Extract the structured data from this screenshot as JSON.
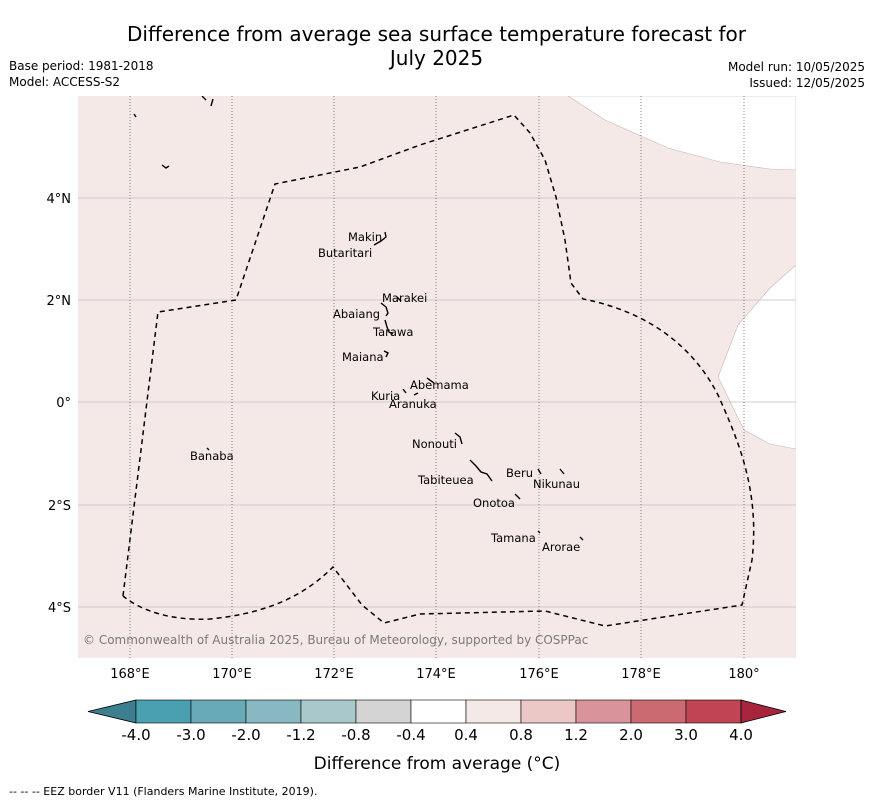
{
  "header": {
    "title_line1": "Difference from average sea surface temperature forecast for",
    "title_line2": "July 2025",
    "base_period": "Base period: 1981-2018",
    "model": "Model: ACCESS-S2",
    "model_run": "Model run: 10/05/2025",
    "issued": "Issued: 12/05/2025"
  },
  "map": {
    "lon_labels": [
      "168°E",
      "170°E",
      "172°E",
      "174°E",
      "176°E",
      "178°E",
      "180°"
    ],
    "lat_labels": [
      "4°N",
      "2°N",
      "0°",
      "2°S",
      "4°S"
    ],
    "land_color": "#f5e9e8",
    "islands": [
      {
        "name": "Makin"
      },
      {
        "name": "Butaritari"
      },
      {
        "name": "Marakei"
      },
      {
        "name": "Abaiang"
      },
      {
        "name": "Tarawa"
      },
      {
        "name": "Maiana"
      },
      {
        "name": "Abemama"
      },
      {
        "name": "Kuria"
      },
      {
        "name": "Aranuka"
      },
      {
        "name": "Nonouti"
      },
      {
        "name": "Banaba"
      },
      {
        "name": "Beru"
      },
      {
        "name": "Nikunau"
      },
      {
        "name": "Tabiteuea"
      },
      {
        "name": "Onotoa"
      },
      {
        "name": "Tamana"
      },
      {
        "name": "Arorae"
      }
    ],
    "copyright": "© Commonwealth of Australia 2025, Bureau of Meteorology, supported by COSPPac"
  },
  "colorbar": {
    "colors": [
      "#3d7f8e",
      "#4aa0b0",
      "#68aab8",
      "#88b8c2",
      "#a8c8cc",
      "#d4d4d4",
      "#ffffff",
      "#f5e9e8",
      "#ebc8c5",
      "#d9939a",
      "#cc6a72",
      "#c04454",
      "#a8243c"
    ],
    "ticks": [
      "-4.0",
      "-3.0",
      "-2.0",
      "-1.2",
      "-0.8",
      "-0.4",
      "0.4",
      "0.8",
      "1.2",
      "2.0",
      "3.0",
      "4.0"
    ],
    "label": "Difference from average (°C)"
  },
  "footer": {
    "legend_text": "--  --  -- EEZ border V11 (Flanders Marine Institute, 2019)."
  }
}
